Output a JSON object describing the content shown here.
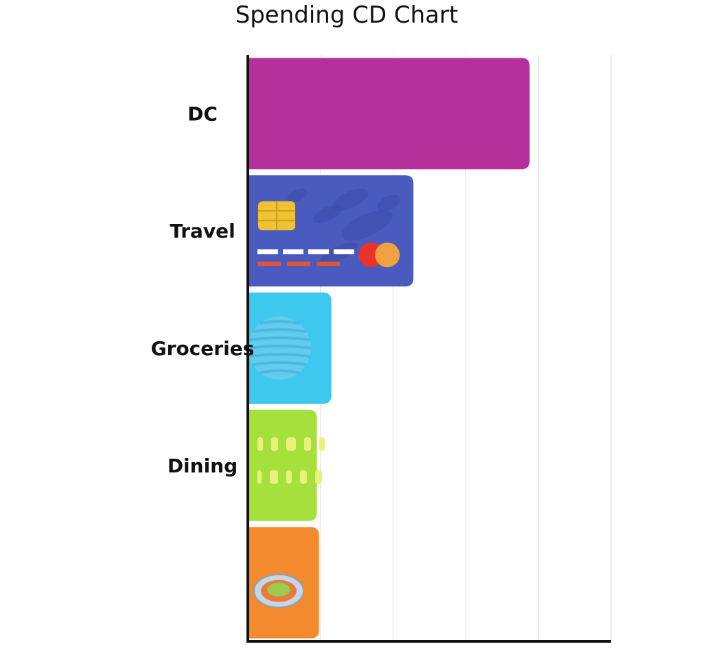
{
  "chart_data": {
    "type": "bar",
    "orientation": "horizontal",
    "title": "Spending CD Chart",
    "xlabel": "",
    "ylabel": "",
    "xlim": [
      0,
      5
    ],
    "grid": true,
    "categories": [
      "DC",
      "Travel",
      "Groceries",
      "Dining",
      ""
    ],
    "values": [
      3.88,
      2.28,
      1.15,
      0.95,
      0.98
    ],
    "colors": [
      "#b5309a",
      "#4a5bbf",
      "#3ec8ee",
      "#a6e03d",
      "#f38a2e"
    ],
    "bar_icons": [
      "",
      "credit-card-icon",
      "globe-icon",
      "receipt-icon",
      "food-plate-icon"
    ]
  }
}
